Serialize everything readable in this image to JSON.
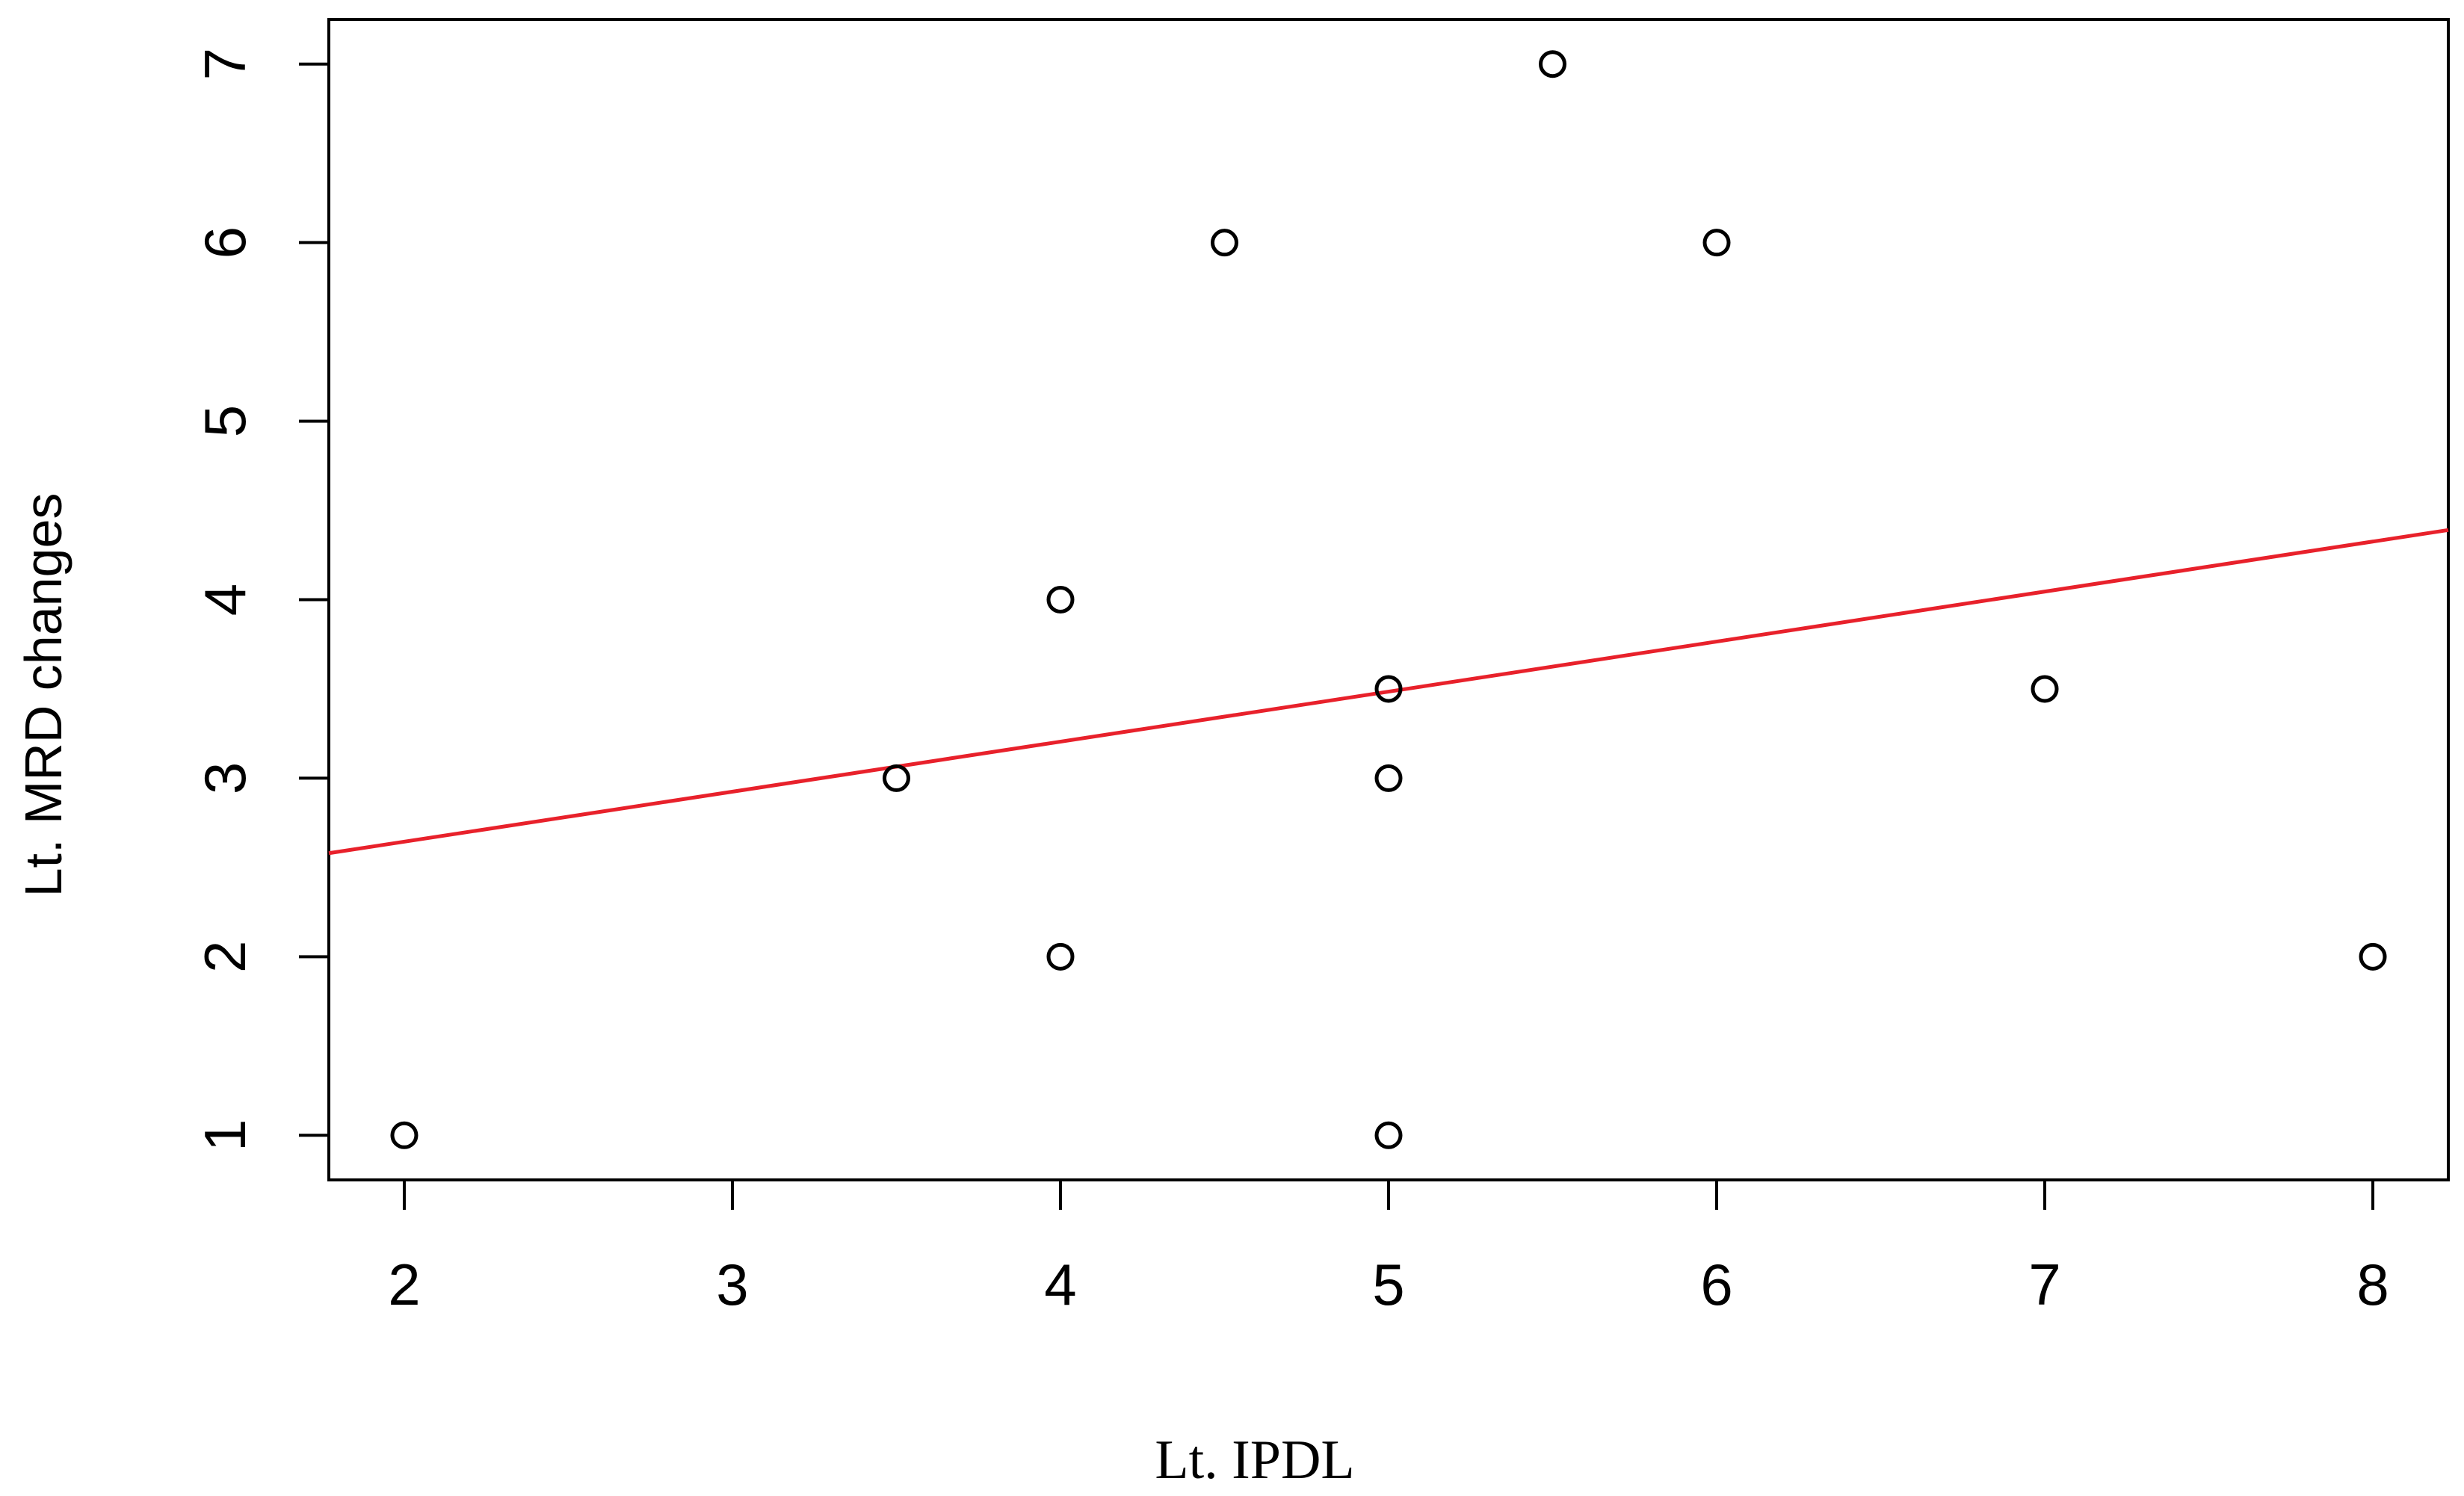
{
  "chart_data": {
    "type": "scatter",
    "title": "",
    "xlabel": "Lt. IPDL",
    "ylabel": "Lt. MRD changes",
    "xlim": [
      1.77,
      8.23
    ],
    "ylim": [
      0.75,
      7.25
    ],
    "xticks": [
      2,
      3,
      4,
      5,
      6,
      7,
      8
    ],
    "yticks": [
      1,
      2,
      3,
      4,
      5,
      6,
      7
    ],
    "grid": false,
    "points": [
      {
        "x": 2,
        "y": 1
      },
      {
        "x": 3.5,
        "y": 3
      },
      {
        "x": 4,
        "y": 4
      },
      {
        "x": 4,
        "y": 2
      },
      {
        "x": 4.5,
        "y": 6
      },
      {
        "x": 5,
        "y": 3.5
      },
      {
        "x": 5,
        "y": 3
      },
      {
        "x": 5,
        "y": 1
      },
      {
        "x": 5.5,
        "y": 7
      },
      {
        "x": 6,
        "y": 6
      },
      {
        "x": 7,
        "y": 3.5
      },
      {
        "x": 8,
        "y": 2
      }
    ],
    "trendline": {
      "color": "#e8212b",
      "x": [
        1.77,
        8.23
      ],
      "y": [
        2.58,
        4.39
      ]
    },
    "point_color": "#000000"
  }
}
